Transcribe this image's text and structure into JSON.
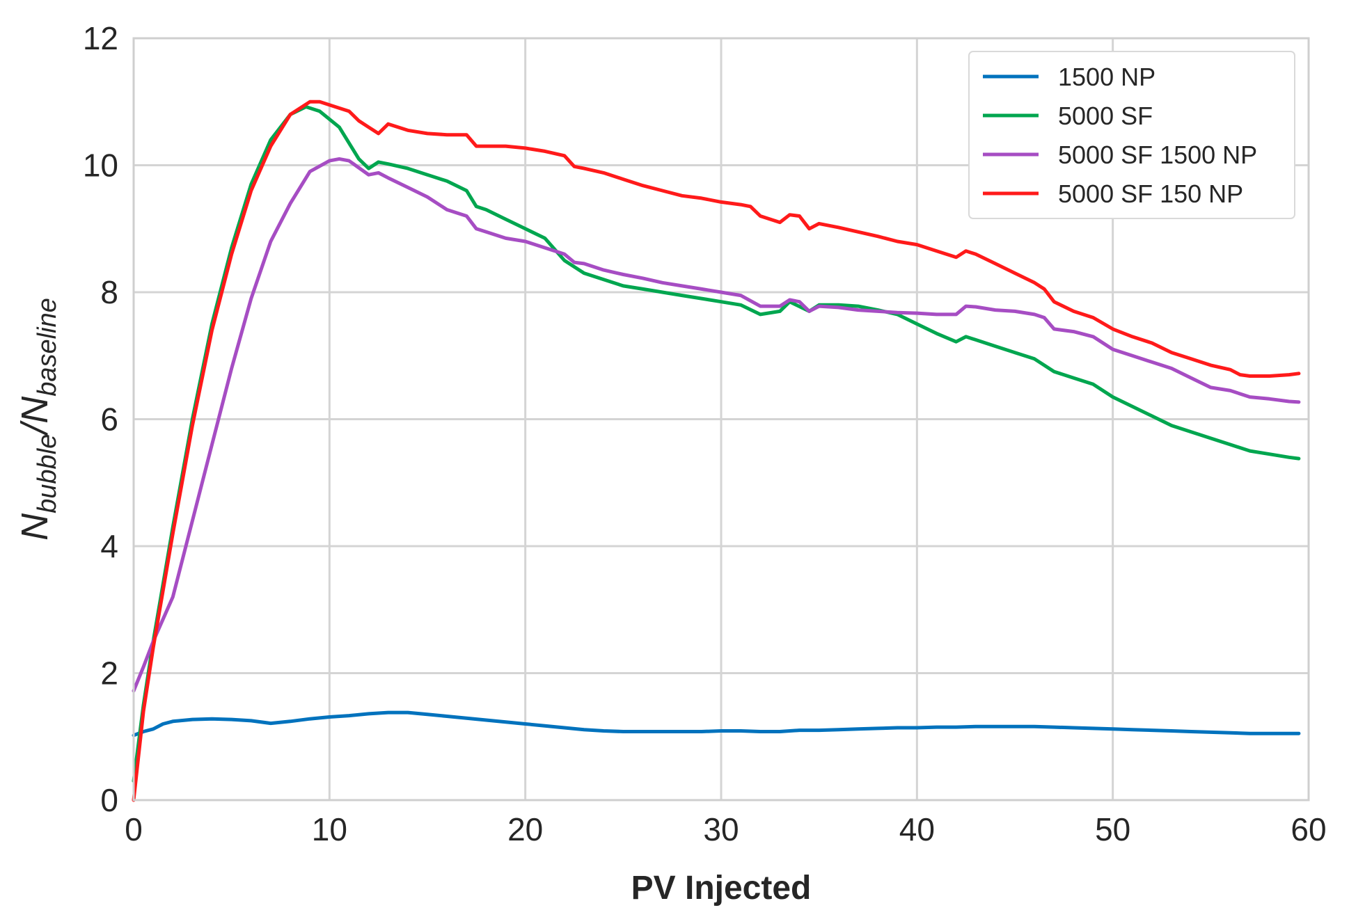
{
  "chart_data": {
    "type": "line",
    "title": "",
    "xlabel": "PV Injected",
    "ylabel": {
      "main1": "N",
      "sub1": "bubble",
      "sep": "/N",
      "sub2": "baseline"
    },
    "xlim": [
      0,
      60
    ],
    "ylim": [
      0,
      12
    ],
    "xticks": [
      "0",
      "10",
      "20",
      "30",
      "40",
      "50",
      "60"
    ],
    "yticks": [
      "0",
      "2",
      "4",
      "6",
      "8",
      "10",
      "12"
    ],
    "grid": true,
    "legend_position": "top-right",
    "series": [
      {
        "name": "1500 NP",
        "color": "#0072bd",
        "points": [
          [
            0,
            1.02
          ],
          [
            0.5,
            1.08
          ],
          [
            1,
            1.12
          ],
          [
            1.5,
            1.2
          ],
          [
            2,
            1.24
          ],
          [
            3,
            1.27
          ],
          [
            4,
            1.28
          ],
          [
            5,
            1.27
          ],
          [
            6,
            1.25
          ],
          [
            7,
            1.21
          ],
          [
            8,
            1.24
          ],
          [
            9,
            1.28
          ],
          [
            10,
            1.31
          ],
          [
            11,
            1.33
          ],
          [
            12,
            1.36
          ],
          [
            13,
            1.38
          ],
          [
            14,
            1.38
          ],
          [
            15,
            1.35
          ],
          [
            16,
            1.32
          ],
          [
            17,
            1.29
          ],
          [
            18,
            1.26
          ],
          [
            19,
            1.23
          ],
          [
            20,
            1.2
          ],
          [
            21,
            1.17
          ],
          [
            22,
            1.14
          ],
          [
            23,
            1.11
          ],
          [
            24,
            1.09
          ],
          [
            25,
            1.08
          ],
          [
            26,
            1.08
          ],
          [
            27,
            1.08
          ],
          [
            28,
            1.08
          ],
          [
            29,
            1.08
          ],
          [
            30,
            1.09
          ],
          [
            31,
            1.09
          ],
          [
            32,
            1.08
          ],
          [
            33,
            1.08
          ],
          [
            34,
            1.1
          ],
          [
            35,
            1.1
          ],
          [
            36,
            1.11
          ],
          [
            37,
            1.12
          ],
          [
            38,
            1.13
          ],
          [
            39,
            1.14
          ],
          [
            40,
            1.14
          ],
          [
            41,
            1.15
          ],
          [
            42,
            1.15
          ],
          [
            43,
            1.16
          ],
          [
            44,
            1.16
          ],
          [
            45,
            1.16
          ],
          [
            46,
            1.16
          ],
          [
            47,
            1.15
          ],
          [
            48,
            1.14
          ],
          [
            49,
            1.13
          ],
          [
            50,
            1.12
          ],
          [
            51,
            1.11
          ],
          [
            52,
            1.1
          ],
          [
            53,
            1.09
          ],
          [
            54,
            1.08
          ],
          [
            55,
            1.07
          ],
          [
            56,
            1.06
          ],
          [
            57,
            1.05
          ],
          [
            58,
            1.05
          ],
          [
            59,
            1.05
          ],
          [
            59.5,
            1.05
          ]
        ]
      },
      {
        "name": "5000 SF",
        "color": "#00a64f",
        "points": [
          [
            0,
            0.3
          ],
          [
            0.5,
            1.5
          ],
          [
            1,
            2.5
          ],
          [
            2,
            4.3
          ],
          [
            3,
            6.0
          ],
          [
            4,
            7.5
          ],
          [
            5,
            8.7
          ],
          [
            6,
            9.7
          ],
          [
            7,
            10.4
          ],
          [
            8,
            10.8
          ],
          [
            8.8,
            10.92
          ],
          [
            9.5,
            10.85
          ],
          [
            10.5,
            10.6
          ],
          [
            11.5,
            10.1
          ],
          [
            12,
            9.95
          ],
          [
            12.5,
            10.05
          ],
          [
            13,
            10.02
          ],
          [
            14,
            9.95
          ],
          [
            15,
            9.85
          ],
          [
            16,
            9.75
          ],
          [
            17,
            9.6
          ],
          [
            17.5,
            9.35
          ],
          [
            18,
            9.3
          ],
          [
            19,
            9.15
          ],
          [
            20,
            9.0
          ],
          [
            21,
            8.85
          ],
          [
            22,
            8.5
          ],
          [
            23,
            8.3
          ],
          [
            24,
            8.2
          ],
          [
            25,
            8.1
          ],
          [
            26,
            8.05
          ],
          [
            27,
            8.0
          ],
          [
            28,
            7.95
          ],
          [
            29,
            7.9
          ],
          [
            30,
            7.85
          ],
          [
            31,
            7.8
          ],
          [
            32,
            7.65
          ],
          [
            33,
            7.7
          ],
          [
            33.5,
            7.85
          ],
          [
            34.5,
            7.7
          ],
          [
            35,
            7.8
          ],
          [
            36,
            7.8
          ],
          [
            37,
            7.78
          ],
          [
            38,
            7.72
          ],
          [
            39,
            7.65
          ],
          [
            40,
            7.5
          ],
          [
            41,
            7.35
          ],
          [
            42,
            7.22
          ],
          [
            42.5,
            7.3
          ],
          [
            43,
            7.25
          ],
          [
            44,
            7.15
          ],
          [
            45,
            7.05
          ],
          [
            46,
            6.95
          ],
          [
            47,
            6.75
          ],
          [
            48,
            6.65
          ],
          [
            49,
            6.55
          ],
          [
            50,
            6.35
          ],
          [
            51,
            6.2
          ],
          [
            52,
            6.05
          ],
          [
            53,
            5.9
          ],
          [
            54,
            5.8
          ],
          [
            55,
            5.7
          ],
          [
            56,
            5.6
          ],
          [
            57,
            5.5
          ],
          [
            58,
            5.45
          ],
          [
            59,
            5.4
          ],
          [
            59.5,
            5.38
          ]
        ]
      },
      {
        "name": "5000 SF 1500 NP",
        "color": "#a64dc3",
        "points": [
          [
            0,
            1.72
          ],
          [
            0.5,
            2.1
          ],
          [
            1,
            2.5
          ],
          [
            2,
            3.2
          ],
          [
            3,
            4.4
          ],
          [
            4,
            5.6
          ],
          [
            5,
            6.8
          ],
          [
            6,
            7.9
          ],
          [
            7,
            8.8
          ],
          [
            8,
            9.4
          ],
          [
            9,
            9.9
          ],
          [
            10,
            10.07
          ],
          [
            10.5,
            10.1
          ],
          [
            11,
            10.07
          ],
          [
            12,
            9.85
          ],
          [
            12.5,
            9.88
          ],
          [
            13,
            9.8
          ],
          [
            14,
            9.65
          ],
          [
            15,
            9.5
          ],
          [
            16,
            9.3
          ],
          [
            17,
            9.2
          ],
          [
            17.5,
            9.0
          ],
          [
            18,
            8.95
          ],
          [
            19,
            8.85
          ],
          [
            20,
            8.8
          ],
          [
            21,
            8.7
          ],
          [
            22,
            8.6
          ],
          [
            22.5,
            8.47
          ],
          [
            23,
            8.45
          ],
          [
            24,
            8.35
          ],
          [
            25,
            8.28
          ],
          [
            26,
            8.22
          ],
          [
            27,
            8.15
          ],
          [
            28,
            8.1
          ],
          [
            29,
            8.05
          ],
          [
            30,
            8.0
          ],
          [
            31,
            7.95
          ],
          [
            32,
            7.78
          ],
          [
            33,
            7.78
          ],
          [
            33.5,
            7.88
          ],
          [
            34,
            7.85
          ],
          [
            34.5,
            7.7
          ],
          [
            35,
            7.78
          ],
          [
            36,
            7.76
          ],
          [
            37,
            7.72
          ],
          [
            38,
            7.7
          ],
          [
            39,
            7.68
          ],
          [
            40,
            7.67
          ],
          [
            41,
            7.65
          ],
          [
            42,
            7.65
          ],
          [
            42.5,
            7.78
          ],
          [
            43,
            7.77
          ],
          [
            44,
            7.72
          ],
          [
            45,
            7.7
          ],
          [
            46,
            7.65
          ],
          [
            46.5,
            7.6
          ],
          [
            47,
            7.42
          ],
          [
            48,
            7.38
          ],
          [
            49,
            7.3
          ],
          [
            50,
            7.1
          ],
          [
            51,
            7.0
          ],
          [
            52,
            6.9
          ],
          [
            53,
            6.8
          ],
          [
            54,
            6.65
          ],
          [
            55,
            6.5
          ],
          [
            56,
            6.45
          ],
          [
            57,
            6.35
          ],
          [
            58,
            6.32
          ],
          [
            59,
            6.28
          ],
          [
            59.5,
            6.27
          ]
        ]
      },
      {
        "name": "5000 SF 150 NP",
        "color": "#ff1a1a",
        "points": [
          [
            0,
            0.0
          ],
          [
            0.5,
            1.4
          ],
          [
            1,
            2.4
          ],
          [
            2,
            4.2
          ],
          [
            3,
            5.9
          ],
          [
            4,
            7.4
          ],
          [
            5,
            8.6
          ],
          [
            6,
            9.6
          ],
          [
            7,
            10.3
          ],
          [
            8,
            10.8
          ],
          [
            9,
            11.0
          ],
          [
            9.5,
            11.0
          ],
          [
            10.5,
            10.9
          ],
          [
            11,
            10.85
          ],
          [
            11.5,
            10.7
          ],
          [
            12,
            10.6
          ],
          [
            12.5,
            10.5
          ],
          [
            13,
            10.65
          ],
          [
            14,
            10.55
          ],
          [
            15,
            10.5
          ],
          [
            16,
            10.48
          ],
          [
            17,
            10.48
          ],
          [
            17.5,
            10.3
          ],
          [
            18,
            10.3
          ],
          [
            19,
            10.3
          ],
          [
            20,
            10.27
          ],
          [
            21,
            10.22
          ],
          [
            22,
            10.15
          ],
          [
            22.5,
            9.98
          ],
          [
            23,
            9.95
          ],
          [
            24,
            9.88
          ],
          [
            25,
            9.78
          ],
          [
            26,
            9.68
          ],
          [
            27,
            9.6
          ],
          [
            28,
            9.52
          ],
          [
            29,
            9.48
          ],
          [
            30,
            9.42
          ],
          [
            31,
            9.38
          ],
          [
            31.5,
            9.35
          ],
          [
            32,
            9.2
          ],
          [
            33,
            9.1
          ],
          [
            33.5,
            9.22
          ],
          [
            34,
            9.2
          ],
          [
            34.5,
            9.0
          ],
          [
            35,
            9.08
          ],
          [
            36,
            9.02
          ],
          [
            37,
            8.95
          ],
          [
            38,
            8.88
          ],
          [
            39,
            8.8
          ],
          [
            40,
            8.75
          ],
          [
            41,
            8.65
          ],
          [
            42,
            8.55
          ],
          [
            42.5,
            8.65
          ],
          [
            43,
            8.6
          ],
          [
            44,
            8.45
          ],
          [
            45,
            8.3
          ],
          [
            46,
            8.15
          ],
          [
            46.5,
            8.05
          ],
          [
            47,
            7.85
          ],
          [
            48,
            7.7
          ],
          [
            49,
            7.6
          ],
          [
            50,
            7.42
          ],
          [
            51,
            7.3
          ],
          [
            52,
            7.2
          ],
          [
            53,
            7.05
          ],
          [
            54,
            6.95
          ],
          [
            55,
            6.85
          ],
          [
            56,
            6.78
          ],
          [
            56.5,
            6.7
          ],
          [
            57,
            6.68
          ],
          [
            58,
            6.68
          ],
          [
            59,
            6.7
          ],
          [
            59.5,
            6.72
          ]
        ]
      }
    ]
  }
}
